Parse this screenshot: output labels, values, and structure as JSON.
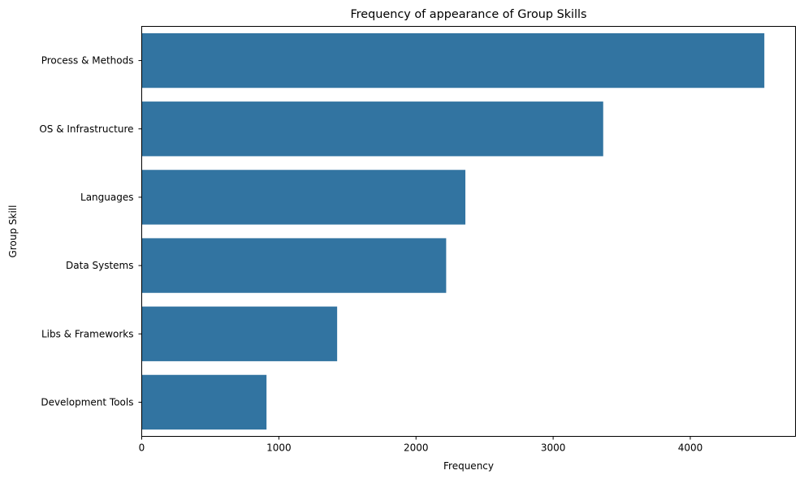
{
  "chart_data": {
    "type": "bar",
    "orientation": "horizontal",
    "title": "Frequency of appearance of Group Skills",
    "xlabel": "Frequency",
    "ylabel": "Group Skill",
    "categories": [
      "Process & Methods",
      "OS & Infrastructure",
      "Languages",
      "Data Systems",
      "Libs & Frameworks",
      "Development Tools"
    ],
    "values": [
      4540,
      3365,
      2360,
      2220,
      1425,
      910
    ],
    "xlim": [
      0,
      4767
    ],
    "xticks": [
      0,
      1000,
      2000,
      3000,
      4000
    ],
    "grid": false,
    "legend": "none",
    "bar_color": "#3274a1"
  }
}
